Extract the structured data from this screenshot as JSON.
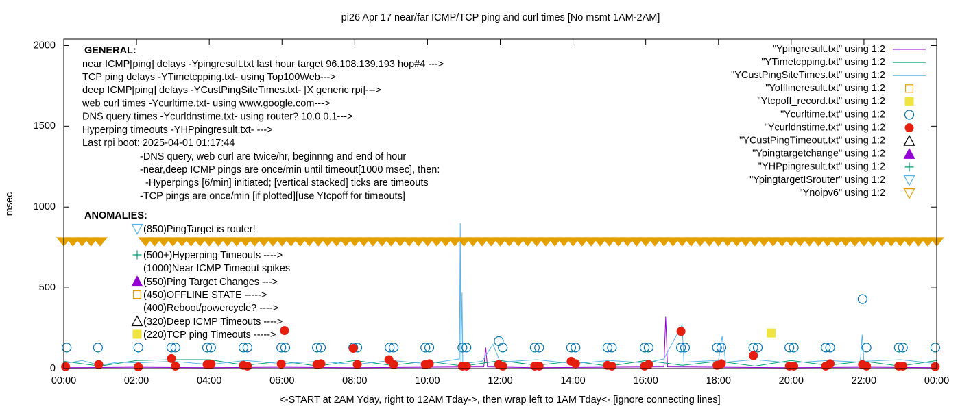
{
  "chart_data": {
    "type": "line",
    "title": "pi26 Apr 17  near/far ICMP/TCP ping and curl times [No msmt 1AM-2AM]",
    "x_label": "<-START at 2AM Yday, right to 12AM Tday->, then wrap left to 1AM Tday<- [ignore connecting lines]",
    "y_label": "msec",
    "xlim": [
      0,
      24
    ],
    "ylim": [
      0,
      2040
    ],
    "xticks": [
      {
        "value": 0,
        "label": "00:00"
      },
      {
        "value": 2,
        "label": "02:00"
      },
      {
        "value": 4,
        "label": "04:00"
      },
      {
        "value": 6,
        "label": "06:00"
      },
      {
        "value": 8,
        "label": "08:00"
      },
      {
        "value": 10,
        "label": "10:00"
      },
      {
        "value": 12,
        "label": "12:00"
      },
      {
        "value": 14,
        "label": "14:00"
      },
      {
        "value": 16,
        "label": "16:00"
      },
      {
        "value": 18,
        "label": "18:00"
      },
      {
        "value": 20,
        "label": "20:00"
      },
      {
        "value": 22,
        "label": "22:00"
      },
      {
        "value": 24,
        "label": "00:00"
      }
    ],
    "yticks": [
      0,
      500,
      1000,
      1500,
      2000
    ],
    "legend": "top-right",
    "general_heading": "GENERAL:",
    "general": [
      "near ICMP[ping] delays -Ypingresult.txt last hour target 96.108.139.193 hop#4 --->",
      "TCP ping delays -YTimetcpping.txt- using Top100Web--->",
      "deep ICMP[ping] delays -YCustPingSiteTimes.txt- [X generic rpi]--->",
      "web curl times -Ycurltime.txt- using www.google.com--->",
      "DNS query times -Ycurldnstime.txt- using router? 10.0.0.1--->",
      "Hyperping timeouts -YHPpingresult.txt- --->",
      "Last rpi boot: 2025-04-01 01:17:44"
    ],
    "notes": [
      "-DNS query, web curl are twice/hr, beginnng and end of hour",
      "-near,deep ICMP pings are once/min until timeout[1000 msec], then:",
      "-Hyperpings [6/min] initiated; [vertical stacked] ticks are timeouts",
      "-TCP pings are once/min [if plotted][use Ytcpoff for timeouts]"
    ],
    "anomalies_heading": "ANOMALIES:",
    "anomalies": [
      "(850)PingTarget is router!",
      "(500+)Hyperping Timeouts ---->",
      "(1000)Near ICMP Timeout spikes",
      "(550)Ping Target Changes --->",
      "(450)OFFLINE STATE ----->",
      "(400)Reboot/powercycle? ---->",
      "(320)Deep ICMP Timeouts ---->",
      "(220)TCP ping Timeouts ----->"
    ],
    "series": [
      {
        "name": "\"Ypingresult.txt\" using 1:2",
        "color": "#9400d3",
        "style": "line",
        "x": [
          0,
          2,
          4,
          6,
          8,
          10,
          11.55,
          11.6,
          11.65,
          13,
          15,
          16.5,
          16.55,
          16.6,
          18,
          20,
          22,
          24
        ],
        "values": [
          5,
          8,
          5,
          8,
          5,
          8,
          10,
          130,
          10,
          5,
          8,
          10,
          320,
          10,
          8,
          5,
          8,
          5
        ]
      },
      {
        "name": "\"YTimetcpping.txt\" using 1:2",
        "color": "#009e73",
        "style": "line",
        "x": [
          0,
          1,
          2,
          3,
          4,
          5,
          6,
          7,
          8,
          9,
          10,
          11,
          12,
          13,
          14,
          15,
          16,
          17,
          18,
          19,
          20,
          21,
          22,
          23,
          24
        ],
        "values": [
          45,
          15,
          50,
          55,
          55,
          20,
          45,
          15,
          50,
          20,
          45,
          15,
          50,
          20,
          45,
          15,
          50,
          20,
          45,
          15,
          50,
          20,
          45,
          15,
          50
        ]
      },
      {
        "name": "\"YCustPingSiteTimes.txt\" using 1:2",
        "color": "#56b4e9",
        "style": "line",
        "x": [
          0,
          0.5,
          1,
          1.5,
          2,
          3,
          4,
          5,
          6,
          7,
          8,
          9,
          10,
          10.88,
          10.9,
          10.92,
          10.95,
          10.97,
          11.5,
          11.8,
          12,
          13,
          14,
          15,
          16,
          16.5,
          17,
          17.05,
          17.5,
          18,
          18.1,
          18.2,
          19,
          20,
          21,
          21.9,
          21.95,
          22,
          23,
          24
        ],
        "values": [
          30,
          50,
          20,
          40,
          35,
          45,
          25,
          50,
          30,
          45,
          25,
          50,
          30,
          60,
          900,
          40,
          470,
          30,
          45,
          150,
          40,
          55,
          30,
          50,
          35,
          60,
          270,
          40,
          45,
          50,
          200,
          40,
          55,
          35,
          50,
          40,
          210,
          45,
          55,
          30
        ]
      },
      {
        "name": "\"Yofflineresult.txt\" using 1:2",
        "color": "#e69f00",
        "style": "square-open",
        "x": [],
        "values": []
      },
      {
        "name": "\"Ytcpoff_record.txt\" using 1:2",
        "color": "#f0e442",
        "style": "square-filled",
        "x": [
          19.45
        ],
        "values": [
          220
        ]
      },
      {
        "name": "\"Ycurltime.txt\" using 1:2",
        "color": "#0072b2",
        "style": "circle-open",
        "x": [
          0.08,
          0.94,
          2.05,
          2.96,
          3.07,
          3.94,
          4.05,
          4.94,
          5.05,
          5.98,
          6.09,
          6.96,
          7.07,
          7.96,
          8.07,
          8.96,
          9.07,
          9.94,
          10.05,
          10.96,
          11.07,
          11.96,
          12.07,
          12.95,
          13.07,
          13.95,
          14.07,
          14.95,
          15.07,
          15.97,
          16.08,
          16.97,
          17.08,
          17.96,
          18.08,
          18.96,
          19.08,
          19.95,
          20.07,
          20.95,
          21.07,
          21.96,
          22.07,
          22.96,
          23.07,
          23.96
        ],
        "values": [
          130,
          130,
          130,
          130,
          130,
          130,
          130,
          130,
          130,
          130,
          130,
          130,
          130,
          130,
          130,
          130,
          130,
          130,
          130,
          130,
          130,
          170,
          130,
          130,
          130,
          130,
          130,
          130,
          130,
          130,
          130,
          130,
          130,
          130,
          130,
          130,
          130,
          130,
          130,
          130,
          130,
          430,
          130,
          130,
          130,
          130
        ]
      },
      {
        "name": "\"Ycurldnstime.txt\" using 1:2",
        "color": "#e51e10",
        "style": "circle-filled",
        "x": [
          0.05,
          0.96,
          2.05,
          2.96,
          3.07,
          3.94,
          4.05,
          4.94,
          5.05,
          5.98,
          6.07,
          6.96,
          7.07,
          7.96,
          8.07,
          8.94,
          9.07,
          9.94,
          10.05,
          10.96,
          11.07,
          11.96,
          12.07,
          12.95,
          13.07,
          13.95,
          14.07,
          14.95,
          15.07,
          15.97,
          16.08,
          16.97,
          17.96,
          18.08,
          18.96,
          19.95,
          20.07,
          20.95,
          21.07,
          21.96,
          22.07,
          22.96,
          23.07,
          23.96
        ],
        "values": [
          12,
          25,
          10,
          62,
          15,
          25,
          28,
          20,
          15,
          28,
          235,
          25,
          30,
          125,
          25,
          55,
          25,
          25,
          30,
          15,
          15,
          25,
          15,
          15,
          15,
          45,
          30,
          20,
          15,
          15,
          25,
          230,
          20,
          30,
          80,
          15,
          15,
          15,
          30,
          25,
          15,
          15,
          15,
          12
        ]
      },
      {
        "name": "\"YCustPingTimeout.txt\" using 1:2",
        "color": "#000000",
        "style": "triangle-open",
        "x": [],
        "values": []
      },
      {
        "name": "\"Ypingtargetchange\" using 1:2",
        "color": "#9400d3",
        "style": "triangle-filled",
        "x": [],
        "values": []
      },
      {
        "name": "\"YHPpingresult.txt\" using 1:2",
        "color": "#009e73",
        "style": "plus",
        "x": [],
        "values": []
      },
      {
        "name": "\"YpingtargetISrouter\" using 1:2",
        "color": "#56b4e9",
        "style": "tri-down-open",
        "x": [],
        "values": []
      },
      {
        "name": "\"Ynoipv6\" using 1:2",
        "color": "#e69f00",
        "style": "tri-down-band",
        "x": [
          0,
          0.25,
          0.5,
          0.75,
          1,
          2.25,
          2.5,
          2.75,
          3,
          3.25,
          3.5,
          3.75,
          4,
          4.25,
          4.5,
          4.75,
          5,
          5.25,
          5.5,
          5.75,
          6,
          6.25,
          6.5,
          6.75,
          7,
          7.25,
          7.5,
          7.75,
          8,
          8.25,
          8.5,
          8.75,
          9,
          9.25,
          9.5,
          9.75,
          10,
          10.25,
          10.5,
          10.75,
          11,
          11.25,
          11.5,
          11.75,
          12,
          12.25,
          12.5,
          12.75,
          13,
          13.25,
          13.5,
          13.75,
          14,
          14.25,
          14.5,
          14.75,
          15,
          15.25,
          15.5,
          15.75,
          16,
          16.25,
          16.5,
          16.75,
          17,
          17.25,
          17.5,
          17.75,
          18,
          18.25,
          18.5,
          18.75,
          19,
          19.25,
          19.5,
          19.75,
          20,
          20.25,
          20.5,
          20.75,
          21,
          21.25,
          21.5,
          21.75,
          22,
          22.25,
          22.5,
          22.75,
          23,
          23.25,
          23.5,
          23.75,
          24
        ],
        "values": [
          785,
          785,
          785,
          785,
          785,
          785,
          785,
          785,
          785,
          785,
          785,
          785,
          785,
          785,
          785,
          785,
          785,
          785,
          785,
          785,
          785,
          785,
          785,
          785,
          785,
          785,
          785,
          785,
          785,
          785,
          785,
          785,
          785,
          785,
          785,
          785,
          785,
          785,
          785,
          785,
          785,
          785,
          785,
          785,
          785,
          785,
          785,
          785,
          785,
          785,
          785,
          785,
          785,
          785,
          785,
          785,
          785,
          785,
          785,
          785,
          785,
          785,
          785,
          785,
          785,
          785,
          785,
          785,
          785,
          785,
          785,
          785,
          785,
          785,
          785,
          785,
          785,
          785,
          785,
          785,
          785,
          785,
          785,
          785,
          785,
          785,
          785,
          785,
          785,
          785,
          785,
          785,
          785
        ]
      }
    ]
  }
}
